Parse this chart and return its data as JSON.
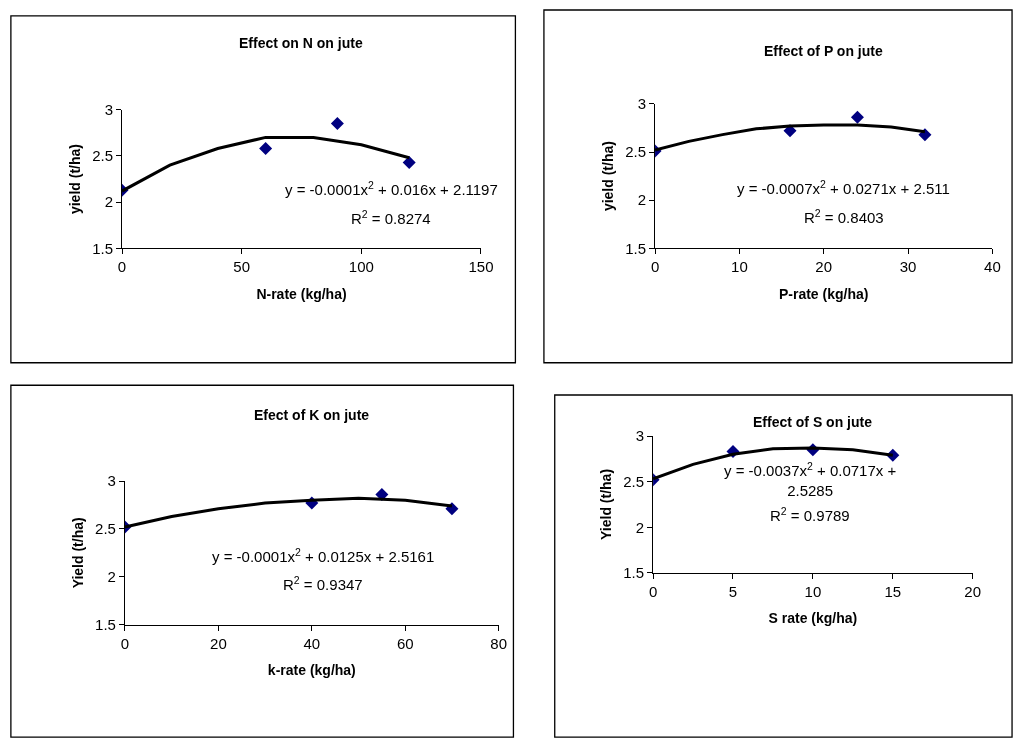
{
  "chart_data": [
    {
      "type": "scatter",
      "title": "Effect on N on jute",
      "xlabel": "N-rate (kg/ha)",
      "ylabel": "yield (t/ha)",
      "xlim": [
        0,
        150
      ],
      "xticks": [
        0,
        50,
        100,
        150
      ],
      "ylim": [
        1.5,
        3
      ],
      "yticks": [
        1.5,
        2,
        2.5,
        3
      ],
      "series": [
        {
          "color": "#000080",
          "marker": "diamond",
          "x": [
            0,
            60,
            90,
            120
          ],
          "values": [
            2.13,
            2.58,
            2.85,
            2.43
          ]
        },
        {
          "type": "line",
          "color": "#000000",
          "marker": "none",
          "line_style": "solid",
          "x": [
            0,
            20,
            40,
            60,
            80,
            100,
            120
          ],
          "values": [
            2.12,
            2.4,
            2.58,
            2.7,
            2.7,
            2.62,
            2.48
          ]
        }
      ],
      "annotations": [
        "y = -0.0001x$^{2}$ + 0.016x + 2.1197",
        "R$^{2}$ = 0.8274"
      ]
    },
    {
      "type": "scatter",
      "title": "Effect of P on jute",
      "xlabel": "P-rate (kg/ha)",
      "ylabel": "yield (t/ha)",
      "xlim": [
        0,
        40
      ],
      "xticks": [
        0,
        10,
        20,
        30,
        40
      ],
      "ylim": [
        1.5,
        3
      ],
      "yticks": [
        1.5,
        2,
        2.5,
        3
      ],
      "series": [
        {
          "color": "#000080",
          "marker": "diamond",
          "x": [
            0,
            16,
            24,
            32
          ],
          "values": [
            2.51,
            2.72,
            2.86,
            2.68
          ]
        },
        {
          "type": "line",
          "color": "#000000",
          "marker": "none",
          "line_style": "solid",
          "x": [
            0,
            4,
            8,
            12,
            16,
            20,
            24,
            28,
            32
          ],
          "values": [
            2.52,
            2.61,
            2.68,
            2.74,
            2.77,
            2.78,
            2.78,
            2.76,
            2.71
          ]
        }
      ],
      "annotations": [
        "y = -0.0007x$^{2}$ + 0.0271x + 2.511",
        "R$^{2}$ = 0.8403"
      ]
    },
    {
      "type": "scatter",
      "title": "Efect of K on jute",
      "xlabel": "k-rate (kg/ha)",
      "ylabel": "Yield (t/ha)",
      "xlim": [
        0,
        80
      ],
      "xticks": [
        0,
        20,
        40,
        60,
        80
      ],
      "ylim": [
        1.5,
        3
      ],
      "yticks": [
        1.5,
        2,
        2.5,
        3
      ],
      "series": [
        {
          "color": "#000080",
          "marker": "diamond",
          "x": [
            0,
            40,
            55,
            70
          ],
          "values": [
            2.52,
            2.77,
            2.86,
            2.71
          ]
        },
        {
          "type": "line",
          "color": "#000000",
          "marker": "none",
          "line_style": "solid",
          "x": [
            0,
            10,
            20,
            30,
            40,
            50,
            60,
            70
          ],
          "values": [
            2.52,
            2.63,
            2.71,
            2.77,
            2.8,
            2.82,
            2.8,
            2.74
          ]
        }
      ],
      "annotations": [
        "y = -0.0001x$^{2}$ + 0.0125x + 2.5161",
        "R$^{2}$ = 0.9347"
      ]
    },
    {
      "type": "scatter",
      "title": "Effect of S on jute",
      "xlabel": "S rate (kg/ha)",
      "ylabel": "Yield (t/ha)",
      "xlim": [
        0,
        20
      ],
      "xticks": [
        0,
        5,
        10,
        15,
        20
      ],
      "ylim": [
        1.5,
        3
      ],
      "yticks": [
        1.5,
        2,
        2.5,
        3
      ],
      "series": [
        {
          "color": "#000080",
          "marker": "diamond",
          "x": [
            0,
            5,
            10,
            15
          ],
          "values": [
            2.52,
            2.83,
            2.85,
            2.79
          ]
        },
        {
          "type": "line",
          "color": "#000000",
          "marker": "none",
          "line_style": "solid",
          "x": [
            0,
            2.5,
            5,
            7.5,
            10,
            12.5,
            15
          ],
          "values": [
            2.53,
            2.69,
            2.8,
            2.86,
            2.87,
            2.85,
            2.79
          ]
        }
      ],
      "annotations": [
        "y = -0.0037x$^{2}$ + 0.0717x + 2.5285",
        "R$^{2}$ = 0.9789"
      ]
    }
  ]
}
